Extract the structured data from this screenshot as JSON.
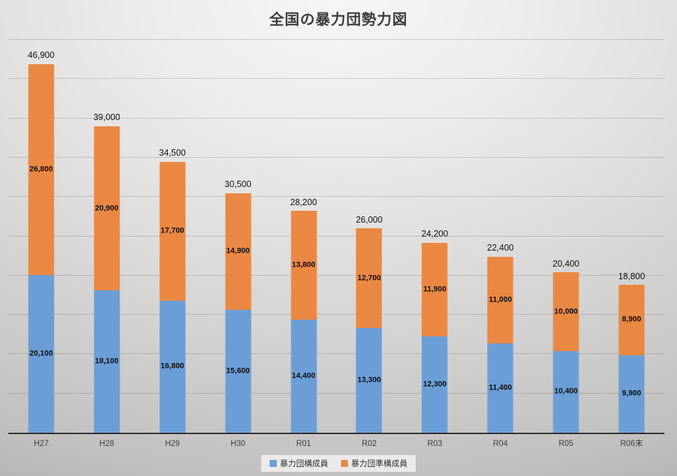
{
  "title": "全国の暴力団勢力図",
  "chart_data": {
    "type": "bar",
    "stacked": true,
    "title": "全国の暴力団勢力図",
    "categories": [
      "H27",
      "H28",
      "H29",
      "H30",
      "R01",
      "R02",
      "R03",
      "R04",
      "R05",
      "R06末"
    ],
    "series": [
      {
        "name": "暴力団構成員",
        "color": "#6b9ed7",
        "values": [
          20100,
          18100,
          16800,
          15600,
          14400,
          13300,
          12300,
          11400,
          10400,
          9900
        ]
      },
      {
        "name": "暴力団準構成員",
        "color": "#ea8843",
        "values": [
          26800,
          20900,
          17700,
          14900,
          13800,
          12700,
          11900,
          11000,
          10000,
          8900
        ]
      }
    ],
    "totals": [
      46900,
      39000,
      34500,
      30500,
      28200,
      26000,
      24200,
      22400,
      20400,
      18800
    ],
    "xlabel": "",
    "ylabel": "",
    "ylim": [
      0,
      50000
    ],
    "gridline_interval": 5000,
    "grid": true,
    "y_axis_labels_visible": false,
    "legend_position": "bottom",
    "data_labels": "center",
    "total_labels": "above"
  },
  "legend": {
    "items": [
      {
        "label": "暴力団構成員",
        "color": "#6b9ed7"
      },
      {
        "label": "暴力団準構成員",
        "color": "#ea8843"
      }
    ]
  }
}
